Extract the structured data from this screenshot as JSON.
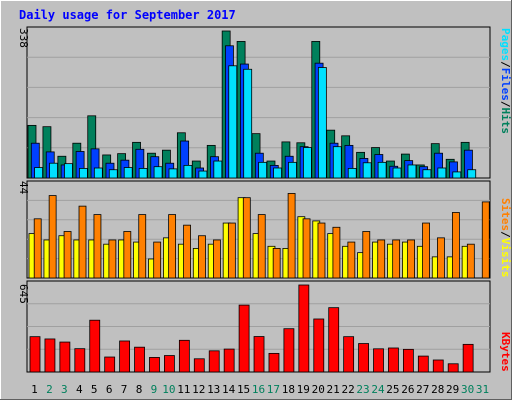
{
  "title": "Daily usage for September 2017",
  "colors": {
    "background": "#c0c0c0",
    "title": "#0000ff",
    "hits": "#00805c",
    "files": "#0040ff",
    "pages": "#00e0ff",
    "visits": "#ffff00",
    "sites": "#ff8000",
    "kbytes": "#ff0000",
    "weekend_label": "#00805c",
    "weekday_label": "#000000"
  },
  "chart_data": [
    {
      "type": "bar",
      "panel": "hits-files-pages",
      "ymax_label": "338",
      "ylim": [
        0,
        338
      ],
      "legend": [
        "Pages",
        "Files",
        "Hits"
      ],
      "categories": [
        "1",
        "2",
        "3",
        "4",
        "5",
        "6",
        "7",
        "8",
        "9",
        "10",
        "11",
        "12",
        "13",
        "14",
        "15",
        "16",
        "17",
        "18",
        "19",
        "20",
        "21",
        "22",
        "23",
        "24",
        "25",
        "26",
        "27",
        "28",
        "29",
        "30",
        "31"
      ],
      "weekend_days": [
        "2",
        "3",
        "9",
        "10",
        "16",
        "17",
        "23",
        "24",
        "30",
        "31"
      ],
      "series": [
        {
          "name": "Hits",
          "values": [
            121,
            118,
            50,
            80,
            143,
            53,
            56,
            82,
            57,
            64,
            104,
            39,
            75,
            338,
            314,
            102,
            39,
            83,
            81,
            314,
            110,
            97,
            59,
            70,
            39,
            55,
            30,
            79,
            43,
            82,
            0
          ]
        },
        {
          "name": "Files",
          "values": [
            80,
            60,
            30,
            61,
            67,
            34,
            41,
            66,
            49,
            34,
            85,
            23,
            49,
            304,
            262,
            57,
            29,
            50,
            72,
            264,
            80,
            75,
            45,
            54,
            27,
            40,
            26,
            57,
            37,
            64,
            0
          ]
        },
        {
          "name": "Pages",
          "values": [
            24,
            34,
            33,
            22,
            23,
            19,
            24,
            22,
            26,
            21,
            29,
            16,
            39,
            258,
            250,
            36,
            23,
            36,
            70,
            254,
            72,
            22,
            35,
            36,
            23,
            30,
            19,
            23,
            14,
            19,
            0
          ]
        }
      ]
    },
    {
      "type": "bar",
      "panel": "visits-sites",
      "ymax_label": "44",
      "ylim": [
        0,
        44
      ],
      "legend": [
        "Sites",
        "Visits"
      ],
      "categories": [
        "1",
        "2",
        "3",
        "4",
        "5",
        "6",
        "7",
        "8",
        "9",
        "10",
        "11",
        "12",
        "13",
        "14",
        "15",
        "16",
        "17",
        "18",
        "19",
        "20",
        "21",
        "22",
        "23",
        "24",
        "25",
        "26",
        "27",
        "28",
        "29",
        "30",
        "31"
      ],
      "series": [
        {
          "name": "Visits",
          "values": [
            21,
            18,
            20,
            18,
            18,
            16,
            18,
            17,
            9,
            19,
            16,
            14,
            16,
            26,
            38,
            21,
            15,
            14,
            29,
            27,
            21,
            15,
            12,
            17,
            16,
            17,
            15,
            10,
            10,
            15,
            0
          ]
        },
        {
          "name": "Sites",
          "values": [
            28,
            39,
            22,
            34,
            30,
            18,
            22,
            30,
            17,
            30,
            25,
            20,
            18,
            26,
            38,
            30,
            14,
            40,
            28,
            26,
            24,
            17,
            22,
            18,
            18,
            18,
            26,
            19,
            31,
            16,
            36
          ]
        }
      ]
    },
    {
      "type": "bar",
      "panel": "kbytes",
      "ymax_label": "645",
      "ylim": [
        0,
        645
      ],
      "legend": [
        "KBytes"
      ],
      "categories": [
        "1",
        "2",
        "3",
        "4",
        "5",
        "6",
        "7",
        "8",
        "9",
        "10",
        "11",
        "12",
        "13",
        "14",
        "15",
        "16",
        "17",
        "18",
        "19",
        "20",
        "21",
        "22",
        "23",
        "24",
        "25",
        "26",
        "27",
        "28",
        "29",
        "30",
        "31"
      ],
      "series": [
        {
          "name": "KBytes",
          "values": [
            262,
            245,
            222,
            173,
            384,
            111,
            230,
            184,
            108,
            122,
            235,
            98,
            157,
            170,
            496,
            263,
            138,
            321,
            645,
            393,
            477,
            262,
            211,
            172,
            178,
            168,
            118,
            89,
            61,
            205,
            0
          ]
        }
      ]
    }
  ]
}
